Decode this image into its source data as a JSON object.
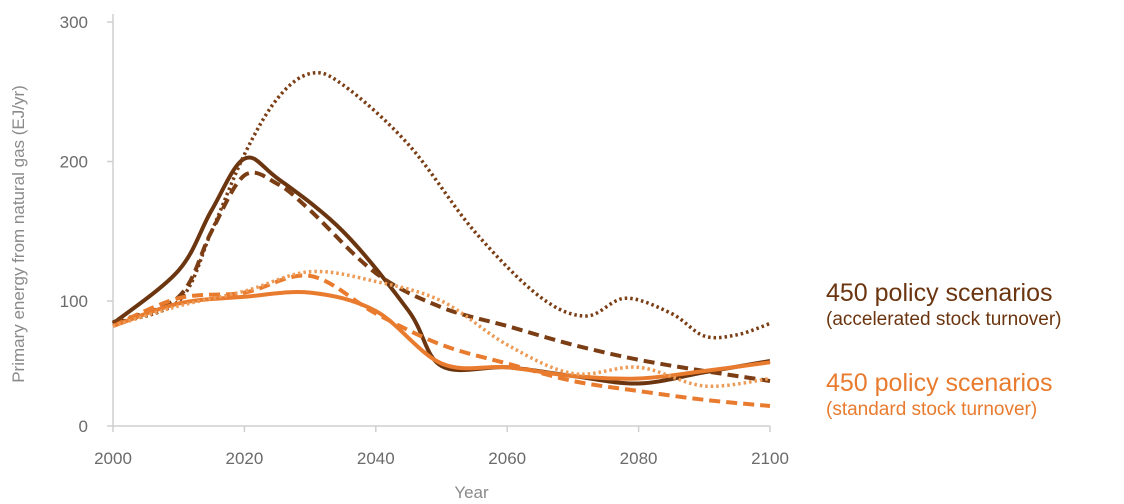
{
  "chart_data": {
    "type": "line",
    "xlabel": "Year",
    "ylabel": "Primary energy from natural gas (EJ/yr)",
    "xlim": [
      2000,
      2100
    ],
    "ylim": [
      0,
      300
    ],
    "xticks": [
      2000,
      2020,
      2040,
      2060,
      2080,
      2100
    ],
    "yticks": [
      0,
      100,
      200,
      300
    ],
    "grid": false,
    "legend_position": "right",
    "groups": [
      {
        "title": "450 policy scenarios",
        "subtitle": "(accelerated stock turnover)",
        "color": "#6b3510"
      },
      {
        "title": "450 policy scenarios",
        "subtitle": "(standard stock turnover)",
        "color": "#e87b2e"
      }
    ],
    "series": [
      {
        "group": 0,
        "style": "solid",
        "color": "#6b3510",
        "x": [
          2000,
          2010,
          2015,
          2020,
          2025,
          2035,
          2045,
          2050,
          2060,
          2070,
          2080,
          2090,
          2100
        ],
        "y": [
          82,
          122,
          165,
          202,
          188,
          150,
          92,
          48,
          47,
          40,
          34,
          43,
          52
        ]
      },
      {
        "group": 0,
        "style": "dashed",
        "color": "#7a3d14",
        "x": [
          2000,
          2010,
          2015,
          2020,
          2025,
          2030,
          2040,
          2050,
          2060,
          2070,
          2080,
          2090,
          2100
        ],
        "y": [
          83,
          103,
          150,
          190,
          184,
          165,
          120,
          95,
          80,
          65,
          53,
          44,
          36
        ]
      },
      {
        "group": 0,
        "style": "dotted",
        "color": "#7a3d14",
        "x": [
          2000,
          2010,
          2015,
          2020,
          2025,
          2030,
          2035,
          2045,
          2055,
          2065,
          2072,
          2078,
          2085,
          2090,
          2095,
          2100
        ],
        "y": [
          82,
          100,
          150,
          205,
          245,
          263,
          255,
          212,
          150,
          103,
          88,
          102,
          90,
          72,
          73,
          82
        ]
      },
      {
        "group": 1,
        "style": "solid",
        "color": "#e87b2e",
        "x": [
          2000,
          2010,
          2020,
          2030,
          2040,
          2050,
          2060,
          2070,
          2080,
          2090,
          2100
        ],
        "y": [
          80,
          98,
          103,
          106,
          92,
          50,
          47,
          40,
          38,
          44,
          51
        ]
      },
      {
        "group": 1,
        "style": "dashed",
        "color": "#e87b2e",
        "x": [
          2000,
          2010,
          2020,
          2030,
          2040,
          2050,
          2060,
          2070,
          2080,
          2090,
          2100
        ],
        "y": [
          80,
          102,
          106,
          118,
          90,
          65,
          50,
          36,
          28,
          21,
          16
        ]
      },
      {
        "group": 1,
        "style": "dotted",
        "color": "#ec9a55",
        "x": [
          2000,
          2010,
          2020,
          2030,
          2040,
          2050,
          2060,
          2070,
          2080,
          2090,
          2100
        ],
        "y": [
          80,
          96,
          107,
          121,
          114,
          100,
          65,
          42,
          47,
          32,
          38
        ]
      }
    ]
  }
}
